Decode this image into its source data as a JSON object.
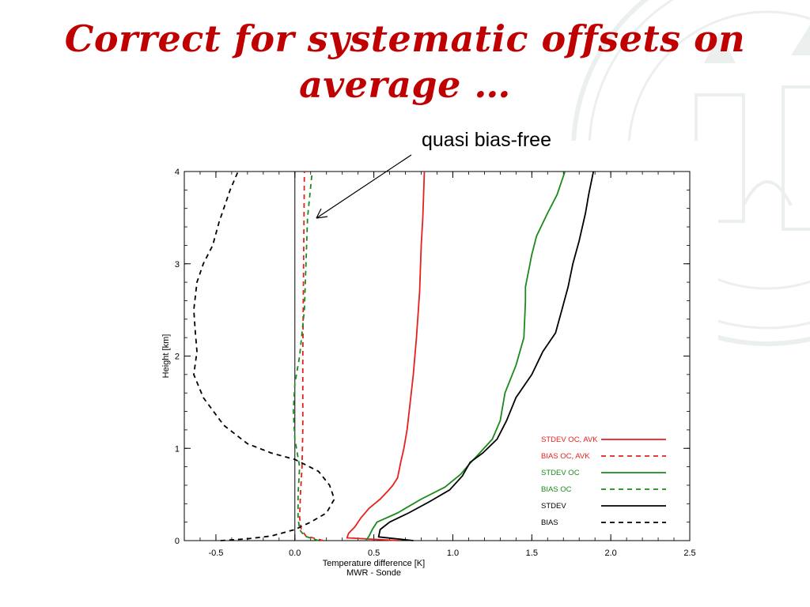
{
  "slide": {
    "title": "Correct for systematic offsets on average …",
    "callout": "quasi bias-free"
  },
  "colors": {
    "title": "#c00000",
    "red": "#e8201d",
    "green": "#1b8a1b",
    "black": "#000000"
  },
  "chart_data": {
    "type": "line",
    "title": "",
    "xlabel": "Temperature difference [K]",
    "xlabel2": "MWR - Sonde",
    "ylabel": "Height [km]",
    "xlim": [
      -0.7,
      2.5
    ],
    "ylim": [
      0,
      4
    ],
    "xticks": [
      -0.5,
      0.0,
      0.5,
      1.0,
      1.5,
      2.0,
      2.5
    ],
    "xtick_labels": [
      "-0.5",
      "0.0",
      "0.5",
      "1.0",
      "1.5",
      "2.0",
      "2.5"
    ],
    "yticks": [
      0,
      1,
      2,
      3,
      4
    ],
    "ytick_labels": [
      "0",
      "1",
      "2",
      "3",
      "4"
    ],
    "grid": false,
    "legend_position": "bottom-right",
    "vline_x": 0,
    "series": [
      {
        "name": "STDEV OC, AVK",
        "color": "#e8201d",
        "style": "solid",
        "points": [
          [
            0.66,
            0
          ],
          [
            0.33,
            0.03
          ],
          [
            0.34,
            0.08
          ],
          [
            0.38,
            0.15
          ],
          [
            0.42,
            0.25
          ],
          [
            0.47,
            0.35
          ],
          [
            0.54,
            0.45
          ],
          [
            0.59,
            0.54
          ],
          [
            0.62,
            0.6
          ],
          [
            0.65,
            0.68
          ],
          [
            0.67,
            0.85
          ],
          [
            0.69,
            1.0
          ],
          [
            0.71,
            1.2
          ],
          [
            0.73,
            1.5
          ],
          [
            0.75,
            1.8
          ],
          [
            0.77,
            2.2
          ],
          [
            0.79,
            2.7
          ],
          [
            0.8,
            3.2
          ],
          [
            0.81,
            3.5
          ],
          [
            0.82,
            4.0
          ]
        ]
      },
      {
        "name": "BIAS OC, AVK",
        "color": "#e8201d",
        "style": "dashed",
        "points": [
          [
            0.18,
            0
          ],
          [
            0.07,
            0.05
          ],
          [
            0.04,
            0.12
          ],
          [
            0.03,
            0.25
          ],
          [
            0.035,
            0.5
          ],
          [
            0.045,
            0.8
          ],
          [
            0.05,
            1.2
          ],
          [
            0.05,
            2.0
          ],
          [
            0.055,
            3.0
          ],
          [
            0.06,
            4.0
          ]
        ]
      },
      {
        "name": "STDEV OC",
        "color": "#1b8a1b",
        "style": "solid",
        "points": [
          [
            0.45,
            0
          ],
          [
            0.47,
            0.05
          ],
          [
            0.49,
            0.12
          ],
          [
            0.52,
            0.2
          ],
          [
            0.65,
            0.3
          ],
          [
            0.8,
            0.45
          ],
          [
            0.95,
            0.58
          ],
          [
            1.05,
            0.72
          ],
          [
            1.1,
            0.82
          ],
          [
            1.17,
            0.95
          ],
          [
            1.25,
            1.1
          ],
          [
            1.3,
            1.3
          ],
          [
            1.33,
            1.6
          ],
          [
            1.4,
            1.9
          ],
          [
            1.45,
            2.2
          ],
          [
            1.46,
            2.6
          ],
          [
            1.46,
            2.75
          ],
          [
            1.5,
            3.1
          ],
          [
            1.53,
            3.3
          ],
          [
            1.6,
            3.55
          ],
          [
            1.66,
            3.75
          ],
          [
            1.71,
            4.0
          ]
        ]
      },
      {
        "name": "BIAS OC",
        "color": "#1b8a1b",
        "style": "dashed",
        "points": [
          [
            0.15,
            0
          ],
          [
            0.06,
            0.05
          ],
          [
            0.03,
            0.12
          ],
          [
            0.02,
            0.25
          ],
          [
            0.02,
            0.5
          ],
          [
            0.03,
            0.8
          ],
          [
            0.0,
            1.1
          ],
          [
            -0.01,
            1.4
          ],
          [
            0.0,
            1.7
          ],
          [
            0.03,
            2.0
          ],
          [
            0.06,
            2.5
          ],
          [
            0.07,
            3.0
          ],
          [
            0.08,
            3.5
          ],
          [
            0.11,
            4.0
          ]
        ]
      },
      {
        "name": "STDEV",
        "color": "#000000",
        "style": "solid",
        "points": [
          [
            0.75,
            0
          ],
          [
            0.53,
            0.04
          ],
          [
            0.54,
            0.12
          ],
          [
            0.6,
            0.2
          ],
          [
            0.72,
            0.3
          ],
          [
            0.85,
            0.42
          ],
          [
            0.98,
            0.55
          ],
          [
            1.06,
            0.7
          ],
          [
            1.11,
            0.85
          ],
          [
            1.19,
            0.95
          ],
          [
            1.28,
            1.1
          ],
          [
            1.34,
            1.3
          ],
          [
            1.4,
            1.55
          ],
          [
            1.5,
            1.8
          ],
          [
            1.57,
            2.05
          ],
          [
            1.65,
            2.25
          ],
          [
            1.69,
            2.5
          ],
          [
            1.73,
            2.75
          ],
          [
            1.76,
            3.0
          ],
          [
            1.8,
            3.25
          ],
          [
            1.84,
            3.55
          ],
          [
            1.86,
            3.75
          ],
          [
            1.89,
            4.0
          ]
        ]
      },
      {
        "name": "BIAS",
        "color": "#000000",
        "style": "dashed",
        "points": [
          [
            -0.47,
            0
          ],
          [
            -0.3,
            0.02
          ],
          [
            -0.15,
            0.05
          ],
          [
            0.0,
            0.12
          ],
          [
            0.1,
            0.2
          ],
          [
            0.2,
            0.3
          ],
          [
            0.25,
            0.45
          ],
          [
            0.22,
            0.6
          ],
          [
            0.15,
            0.75
          ],
          [
            0.0,
            0.88
          ],
          [
            -0.15,
            0.95
          ],
          [
            -0.3,
            1.05
          ],
          [
            -0.45,
            1.25
          ],
          [
            -0.58,
            1.55
          ],
          [
            -0.64,
            1.8
          ],
          [
            -0.62,
            2.05
          ],
          [
            -0.63,
            2.25
          ],
          [
            -0.64,
            2.5
          ],
          [
            -0.62,
            2.8
          ],
          [
            -0.58,
            3.0
          ],
          [
            -0.52,
            3.2
          ],
          [
            -0.48,
            3.45
          ],
          [
            -0.45,
            3.6
          ],
          [
            -0.41,
            3.8
          ],
          [
            -0.36,
            4.0
          ]
        ]
      }
    ]
  }
}
